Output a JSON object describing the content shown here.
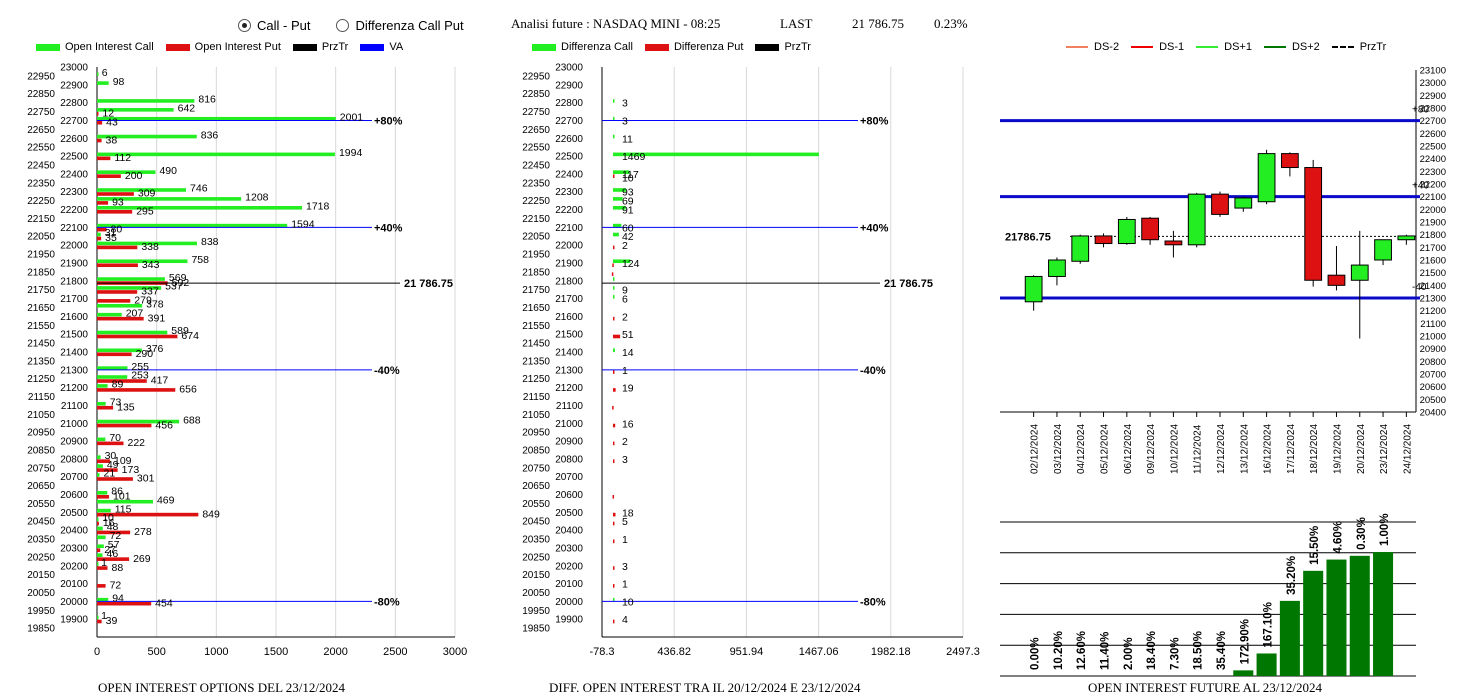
{
  "controls": {
    "options": [
      {
        "label": "Call - Put",
        "selected": true
      },
      {
        "label": "Differenza Call Put",
        "selected": false
      }
    ]
  },
  "header": {
    "title": "Analisi future : NASDAQ MINI - 08:25",
    "last_label": "LAST",
    "last_value": "21 786.75",
    "change": "0.23%"
  },
  "colors": {
    "green": "#22ee22",
    "red": "#dd1111",
    "blue": "#0000ff",
    "dark_green": "#007700",
    "navy": "#0a0ac8"
  },
  "chart_data": [
    {
      "type": "bar",
      "title": "OPEN INTEREST OPTIONS DEL 23/12/2024",
      "legend": [
        {
          "name": "Open Interest Call",
          "color": "#22ee22"
        },
        {
          "name": "Open Interest Put",
          "color": "#dd1111"
        },
        {
          "name": "PrzTr",
          "color": "#000000"
        },
        {
          "name": "VA",
          "color": "#0000ff"
        }
      ],
      "orientation": "horizontal",
      "xlim": [
        0,
        3000
      ],
      "xticks": [
        "0",
        "500",
        "1000",
        "1500",
        "2000",
        "2500",
        "3000"
      ],
      "ylim": [
        19800,
        23000
      ],
      "yticks": [
        19850,
        19900,
        19950,
        20000,
        20050,
        20100,
        20150,
        20200,
        20250,
        20300,
        20350,
        20400,
        20450,
        20500,
        20550,
        20600,
        20650,
        20700,
        20750,
        20800,
        20850,
        20900,
        20950,
        21000,
        21050,
        21100,
        21150,
        21200,
        21250,
        21300,
        21350,
        21400,
        21450,
        21500,
        21550,
        21600,
        21650,
        21700,
        21750,
        21800,
        21850,
        21900,
        21950,
        22000,
        22050,
        22100,
        22150,
        22200,
        22250,
        22300,
        22350,
        22400,
        22450,
        22500,
        22550,
        22600,
        22650,
        22700,
        22750,
        22800,
        22850,
        22900,
        22950,
        23000
      ],
      "series": [
        {
          "name": "Open Interest Call",
          "points": [
            [
              22950,
              6
            ],
            [
              22900,
              98
            ],
            [
              22800,
              816
            ],
            [
              22750,
              642
            ],
            [
              22700,
              2001
            ],
            [
              22600,
              836
            ],
            [
              22500,
              1994
            ],
            [
              22400,
              490
            ],
            [
              22300,
              746
            ],
            [
              22250,
              1208
            ],
            [
              22200,
              1718
            ],
            [
              22100,
              1594
            ],
            [
              22050,
              31
            ],
            [
              22000,
              838
            ],
            [
              21900,
              758
            ],
            [
              21800,
              569
            ],
            [
              21750,
              537
            ],
            [
              21650,
              378
            ],
            [
              21600,
              207
            ],
            [
              21500,
              589
            ],
            [
              21400,
              376
            ],
            [
              21300,
              255
            ],
            [
              21250,
              253
            ],
            [
              21200,
              89
            ],
            [
              21100,
              73
            ],
            [
              21000,
              688
            ],
            [
              20900,
              70
            ],
            [
              20800,
              30
            ],
            [
              20750,
              49
            ],
            [
              20700,
              21
            ],
            [
              20600,
              86
            ],
            [
              20550,
              469
            ],
            [
              20500,
              115
            ],
            [
              20450,
              10
            ],
            [
              20400,
              48
            ],
            [
              20350,
              72
            ],
            [
              20300,
              57
            ],
            [
              20250,
              46
            ],
            [
              20200,
              1
            ],
            [
              20000,
              94
            ],
            [
              19900,
              1
            ]
          ]
        },
        {
          "name": "Open Interest Put",
          "points": [
            [
              22750,
              12
            ],
            [
              22700,
              43
            ],
            [
              22600,
              38
            ],
            [
              22500,
              112
            ],
            [
              22400,
              200
            ],
            [
              22300,
              309
            ],
            [
              22250,
              93
            ],
            [
              22200,
              295
            ],
            [
              22100,
              80
            ],
            [
              22050,
              35
            ],
            [
              22000,
              338
            ],
            [
              21900,
              343
            ],
            [
              21800,
              592
            ],
            [
              21750,
              337
            ],
            [
              21700,
              279
            ],
            [
              21600,
              391
            ],
            [
              21500,
              674
            ],
            [
              21400,
              290
            ],
            [
              21250,
              417
            ],
            [
              21200,
              656
            ],
            [
              21100,
              135
            ],
            [
              21000,
              456
            ],
            [
              20900,
              222
            ],
            [
              20800,
              109
            ],
            [
              20750,
              173
            ],
            [
              20700,
              301
            ],
            [
              20600,
              101
            ],
            [
              20500,
              849
            ],
            [
              20450,
              16
            ],
            [
              20400,
              278
            ],
            [
              20300,
              27
            ],
            [
              20250,
              269
            ],
            [
              20200,
              88
            ],
            [
              20100,
              72
            ],
            [
              20000,
              454
            ],
            [
              19900,
              39
            ]
          ]
        }
      ],
      "reference_lines": [
        {
          "y": 22700,
          "label": "+80%",
          "color": "#0000ff"
        },
        {
          "y": 22100,
          "label": "+40%",
          "color": "#0000ff"
        },
        {
          "y": 21786.75,
          "label": "21 786.75",
          "color": "#000000"
        },
        {
          "y": 21300,
          "label": "-40%",
          "color": "#0000ff"
        },
        {
          "y": 20000,
          "label": "-80%",
          "color": "#0000ff"
        }
      ]
    },
    {
      "type": "bar",
      "title": "DIFF. OPEN INTEREST TRA IL 20/12/2024 E 23/12/2024",
      "legend": [
        {
          "name": "Differenza Call",
          "color": "#22ee22"
        },
        {
          "name": "Differenza Put",
          "color": "#dd1111"
        },
        {
          "name": "PrzTr",
          "color": "#000000"
        }
      ],
      "orientation": "horizontal",
      "xlim": [
        -78.3,
        2497.3
      ],
      "xticks": [
        "-78.3",
        "436.82",
        "951.94",
        "1467.06",
        "1982.18",
        "2497.3"
      ],
      "ylim": [
        19800,
        23000
      ],
      "yticks": [
        19850,
        19900,
        19950,
        20000,
        20050,
        20100,
        20150,
        20200,
        20250,
        20300,
        20350,
        20400,
        20450,
        20500,
        20550,
        20600,
        20650,
        20700,
        20750,
        20800,
        20850,
        20900,
        20950,
        21000,
        21050,
        21100,
        21150,
        21200,
        21250,
        21300,
        21350,
        21400,
        21450,
        21500,
        21550,
        21600,
        21650,
        21700,
        21750,
        21800,
        21850,
        21900,
        21950,
        22000,
        22050,
        22100,
        22150,
        22200,
        22250,
        22300,
        22350,
        22400,
        22450,
        22500,
        22550,
        22600,
        22650,
        22700,
        22750,
        22800,
        22850,
        22900,
        22950,
        23000
      ],
      "series": [
        {
          "name": "Differenza Call",
          "points": [
            [
              22800,
              3
            ],
            [
              22700,
              3
            ],
            [
              22600,
              11
            ],
            [
              22500,
              1469
            ],
            [
              22400,
              117
            ],
            [
              22300,
              93
            ],
            [
              22250,
              69
            ],
            [
              22200,
              91
            ],
            [
              22100,
              60
            ],
            [
              22050,
              42
            ],
            [
              21900,
              124
            ],
            [
              21800,
              9
            ],
            [
              21750,
              9
            ],
            [
              21700,
              6
            ],
            [
              21400,
              14
            ],
            [
              20000,
              10
            ]
          ]
        },
        {
          "name": "Differenza Put",
          "points": [
            [
              22400,
              10
            ],
            [
              22000,
              2
            ],
            [
              21900,
              -5
            ],
            [
              21850,
              -8
            ],
            [
              21600,
              2
            ],
            [
              21500,
              51
            ],
            [
              21300,
              1
            ],
            [
              21200,
              19
            ],
            [
              21100,
              -6
            ],
            [
              21000,
              16
            ],
            [
              20900,
              2
            ],
            [
              20800,
              3
            ],
            [
              20600,
              -3
            ],
            [
              20500,
              18
            ],
            [
              20450,
              5
            ],
            [
              20350,
              1
            ],
            [
              20200,
              3
            ],
            [
              20100,
              1
            ],
            [
              19900,
              4
            ]
          ]
        }
      ],
      "labels": [
        {
          "y": 22800,
          "text": "3"
        },
        {
          "y": 22700,
          "text": "3"
        },
        {
          "y": 22600,
          "text": "11"
        },
        {
          "y": 22500,
          "text": "1469"
        },
        {
          "y": 22400,
          "text": "117"
        },
        {
          "y": 22380,
          "text": "10"
        },
        {
          "y": 22300,
          "text": "93"
        },
        {
          "y": 22250,
          "text": "69"
        },
        {
          "y": 22200,
          "text": "91"
        },
        {
          "y": 22100,
          "text": "60"
        },
        {
          "y": 22050,
          "text": "42"
        },
        {
          "y": 22000,
          "text": "2"
        },
        {
          "y": 21900,
          "text": "124"
        },
        {
          "y": 21750,
          "text": "9"
        },
        {
          "y": 21700,
          "text": "6"
        },
        {
          "y": 21600,
          "text": "2"
        },
        {
          "y": 21500,
          "text": "51"
        },
        {
          "y": 21400,
          "text": "14"
        },
        {
          "y": 21300,
          "text": "1"
        },
        {
          "y": 21200,
          "text": "19"
        },
        {
          "y": 21000,
          "text": "16"
        },
        {
          "y": 20900,
          "text": "2"
        },
        {
          "y": 20800,
          "text": "3"
        },
        {
          "y": 20500,
          "text": "18"
        },
        {
          "y": 20450,
          "text": "5"
        },
        {
          "y": 20350,
          "text": "1"
        },
        {
          "y": 20200,
          "text": "3"
        },
        {
          "y": 20100,
          "text": "1"
        },
        {
          "y": 20000,
          "text": "10"
        },
        {
          "y": 19900,
          "text": "4"
        }
      ],
      "reference_lines": [
        {
          "y": 22700,
          "label": "+80%",
          "color": "#0000ff"
        },
        {
          "y": 22100,
          "label": "+40%",
          "color": "#0000ff"
        },
        {
          "y": 21786.75,
          "label": "21 786.75",
          "color": "#000000"
        },
        {
          "y": 21300,
          "label": "-40%",
          "color": "#0000ff"
        },
        {
          "y": 20000,
          "label": "-80%",
          "color": "#0000ff"
        }
      ]
    },
    {
      "type": "candlestick",
      "legend": [
        {
          "name": "DS-2",
          "color": "#f08060",
          "style": "solid"
        },
        {
          "name": "DS-1",
          "color": "#ee0000",
          "style": "solid"
        },
        {
          "name": "DS+1",
          "color": "#33ee33",
          "style": "solid"
        },
        {
          "name": "DS+2",
          "color": "#007700",
          "style": "solid"
        },
        {
          "name": "PrzTr",
          "color": "#000000",
          "style": "dashed"
        }
      ],
      "ylim": [
        20400,
        23100
      ],
      "yticks": [
        20400,
        20500,
        20600,
        20700,
        20800,
        20900,
        21000,
        21100,
        21200,
        21300,
        21400,
        21500,
        21600,
        21700,
        21800,
        21900,
        22000,
        22100,
        22200,
        22300,
        22400,
        22500,
        22600,
        22700,
        22800,
        22900,
        23000,
        23100
      ],
      "categories": [
        "02/12/2024",
        "03/12/2024",
        "04/12/2024",
        "05/12/2024",
        "06/12/2024",
        "09/12/2024",
        "10/12/2024",
        "11/12/2024",
        "12/12/2024",
        "13/12/2024",
        "16/12/2024",
        "17/12/2024",
        "18/12/2024",
        "19/12/2024",
        "20/12/2024",
        "23/12/2024",
        "24/12/2024"
      ],
      "candles": [
        {
          "open": 21270,
          "high": 21480,
          "low": 21200,
          "close": 21470
        },
        {
          "open": 21470,
          "high": 21620,
          "low": 21400,
          "close": 21600
        },
        {
          "open": 21590,
          "high": 21800,
          "low": 21570,
          "close": 21790
        },
        {
          "open": 21790,
          "high": 21810,
          "low": 21700,
          "close": 21730
        },
        {
          "open": 21730,
          "high": 21940,
          "low": 21720,
          "close": 21920
        },
        {
          "open": 21930,
          "high": 21940,
          "low": 21720,
          "close": 21760
        },
        {
          "open": 21750,
          "high": 21830,
          "low": 21620,
          "close": 21720
        },
        {
          "open": 21720,
          "high": 22130,
          "low": 21700,
          "close": 22120
        },
        {
          "open": 22120,
          "high": 22140,
          "low": 21940,
          "close": 21960
        },
        {
          "open": 22010,
          "high": 22100,
          "low": 21980,
          "close": 22090
        },
        {
          "open": 22060,
          "high": 22470,
          "low": 22040,
          "close": 22440
        },
        {
          "open": 22440,
          "high": 22450,
          "low": 22260,
          "close": 22330
        },
        {
          "open": 22330,
          "high": 22390,
          "low": 21390,
          "close": 21440
        },
        {
          "open": 21480,
          "high": 21710,
          "low": 21360,
          "close": 21400
        },
        {
          "open": 21440,
          "high": 21830,
          "low": 20980,
          "close": 21560
        },
        {
          "open": 21600,
          "high": 21750,
          "low": 21560,
          "close": 21760
        },
        {
          "open": 21760,
          "high": 21800,
          "low": 21720,
          "close": 21790
        }
      ],
      "reference_lines": [
        {
          "y": 22700,
          "label": "+80",
          "color": "#0a0ac8"
        },
        {
          "y": 22100,
          "label": "+40",
          "color": "#0a0ac8"
        },
        {
          "y": 21300,
          "label": "-40",
          "color": "#0a0ac8"
        }
      ],
      "last_price": {
        "y": 21786.75,
        "label": "21786.75"
      }
    },
    {
      "type": "bar",
      "title": "OPEN INTEREST FUTURE AL 23/12/2024",
      "categories": [
        "02/12/2024",
        "03/12/2024",
        "04/12/2024",
        "05/12/2024",
        "06/12/2024",
        "09/12/2024",
        "10/12/2024",
        "11/12/2024",
        "12/12/2024",
        "13/12/2024",
        "16/12/2024",
        "17/12/2024",
        "18/12/2024",
        "19/12/2024",
        "20/12/2024",
        "23/12/2024"
      ],
      "values": [
        0,
        0,
        0,
        0,
        0,
        0,
        0,
        0,
        0,
        1.5,
        6,
        20,
        28,
        31,
        32,
        33
      ],
      "labels": [
        "0.00%",
        "10.20%",
        "12.60%",
        "11.40%",
        "2.00%",
        "18.40%",
        "7.30%",
        "18.50%",
        "35.40%",
        "172.90%",
        "167.10%",
        "35.20%",
        "15.50%",
        "4.60%",
        "0.30%",
        "1.00%"
      ],
      "ylim": [
        0,
        41
      ],
      "grid": true
    }
  ]
}
